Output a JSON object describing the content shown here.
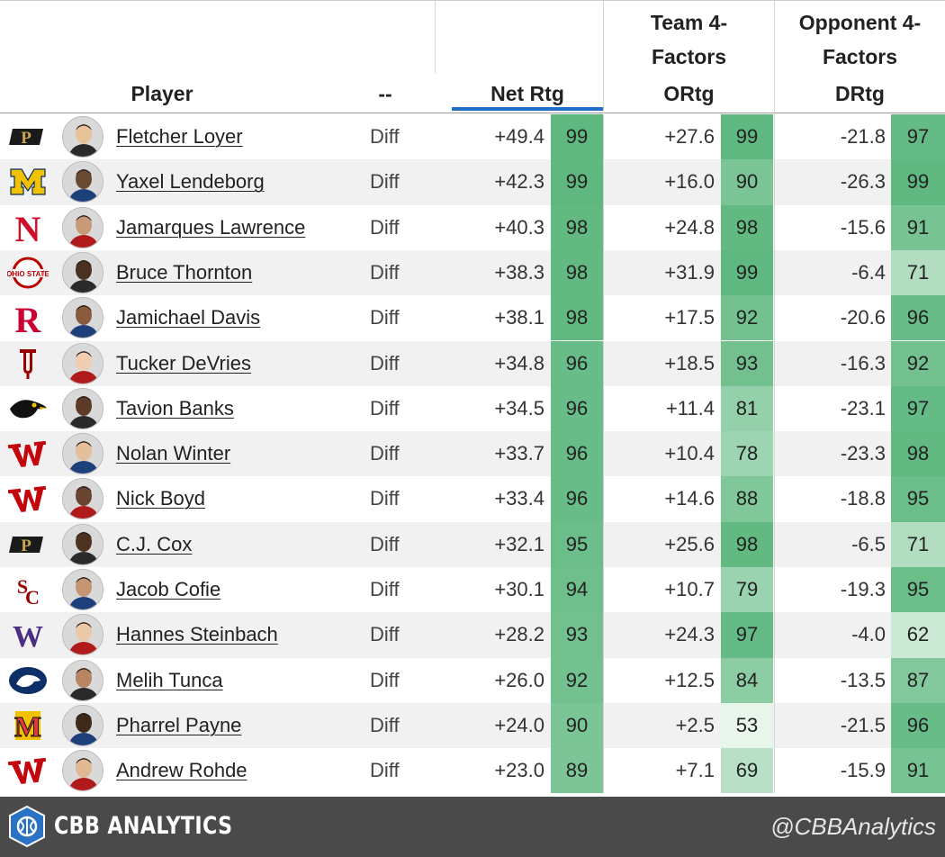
{
  "header": {
    "player": "Player",
    "dash": "--",
    "net_rtg": "Net Rtg",
    "team_group": [
      "Team 4-",
      "Factors"
    ],
    "ortg": "ORtg",
    "opp_group": [
      "Opponent 4-",
      "Factors"
    ],
    "drtg": "DRtg"
  },
  "colors": {
    "sort_indicator": "#1f6fc8",
    "stripe": "#f1f1f1",
    "footer_bg": "#4a4a4a"
  },
  "rows": [
    {
      "team_logo": "purdue-logo",
      "player": "Fletcher Loyer",
      "type": "Diff",
      "net": "+49.4",
      "net_pct": "99",
      "ortg": "+27.6",
      "ortg_pct": "99",
      "drtg": "-21.8",
      "drtg_pct": "97"
    },
    {
      "team_logo": "michigan-logo",
      "player": "Yaxel Lendeborg",
      "type": "Diff",
      "net": "+42.3",
      "net_pct": "99",
      "ortg": "+16.0",
      "ortg_pct": "90",
      "drtg": "-26.3",
      "drtg_pct": "99"
    },
    {
      "team_logo": "nebraska-logo",
      "player": "Jamarques Lawrence",
      "type": "Diff",
      "net": "+40.3",
      "net_pct": "98",
      "ortg": "+24.8",
      "ortg_pct": "98",
      "drtg": "-15.6",
      "drtg_pct": "91"
    },
    {
      "team_logo": "ohio-state-logo",
      "player": "Bruce Thornton",
      "type": "Diff",
      "net": "+38.3",
      "net_pct": "98",
      "ortg": "+31.9",
      "ortg_pct": "99",
      "drtg": "-6.4",
      "drtg_pct": "71"
    },
    {
      "team_logo": "rutgers-logo",
      "player": "Jamichael Davis",
      "type": "Diff",
      "net": "+38.1",
      "net_pct": "98",
      "ortg": "+17.5",
      "ortg_pct": "92",
      "drtg": "-20.6",
      "drtg_pct": "96"
    },
    {
      "team_logo": "indiana-logo",
      "player": "Tucker DeVries",
      "type": "Diff",
      "net": "+34.8",
      "net_pct": "96",
      "ortg": "+18.5",
      "ortg_pct": "93",
      "drtg": "-16.3",
      "drtg_pct": "92"
    },
    {
      "team_logo": "iowa-logo",
      "player": "Tavion Banks",
      "type": "Diff",
      "net": "+34.5",
      "net_pct": "96",
      "ortg": "+11.4",
      "ortg_pct": "81",
      "drtg": "-23.1",
      "drtg_pct": "97"
    },
    {
      "team_logo": "wisconsin-logo",
      "player": "Nolan Winter",
      "type": "Diff",
      "net": "+33.7",
      "net_pct": "96",
      "ortg": "+10.4",
      "ortg_pct": "78",
      "drtg": "-23.3",
      "drtg_pct": "98"
    },
    {
      "team_logo": "wisconsin-logo",
      "player": "Nick Boyd",
      "type": "Diff",
      "net": "+33.4",
      "net_pct": "96",
      "ortg": "+14.6",
      "ortg_pct": "88",
      "drtg": "-18.8",
      "drtg_pct": "95"
    },
    {
      "team_logo": "purdue-logo",
      "player": "C.J. Cox",
      "type": "Diff",
      "net": "+32.1",
      "net_pct": "95",
      "ortg": "+25.6",
      "ortg_pct": "98",
      "drtg": "-6.5",
      "drtg_pct": "71"
    },
    {
      "team_logo": "usc-logo",
      "player": "Jacob Cofie",
      "type": "Diff",
      "net": "+30.1",
      "net_pct": "94",
      "ortg": "+10.7",
      "ortg_pct": "79",
      "drtg": "-19.3",
      "drtg_pct": "95"
    },
    {
      "team_logo": "washington-logo",
      "player": "Hannes Steinbach",
      "type": "Diff",
      "net": "+28.2",
      "net_pct": "93",
      "ortg": "+24.3",
      "ortg_pct": "97",
      "drtg": "-4.0",
      "drtg_pct": "62"
    },
    {
      "team_logo": "penn-state-logo",
      "player": "Melih Tunca",
      "type": "Diff",
      "net": "+26.0",
      "net_pct": "92",
      "ortg": "+12.5",
      "ortg_pct": "84",
      "drtg": "-13.5",
      "drtg_pct": "87"
    },
    {
      "team_logo": "maryland-logo",
      "player": "Pharrel Payne",
      "type": "Diff",
      "net": "+24.0",
      "net_pct": "90",
      "ortg": "+2.5",
      "ortg_pct": "53",
      "drtg": "-21.5",
      "drtg_pct": "96"
    },
    {
      "team_logo": "wisconsin-logo",
      "player": "Andrew Rohde",
      "type": "Diff",
      "net": "+23.0",
      "net_pct": "89",
      "ortg": "+7.1",
      "ortg_pct": "69",
      "drtg": "-15.9",
      "drtg_pct": "91"
    }
  ],
  "footer": {
    "brand": "CBB ANALYTICS",
    "handle": "@CBBAnalytics"
  }
}
